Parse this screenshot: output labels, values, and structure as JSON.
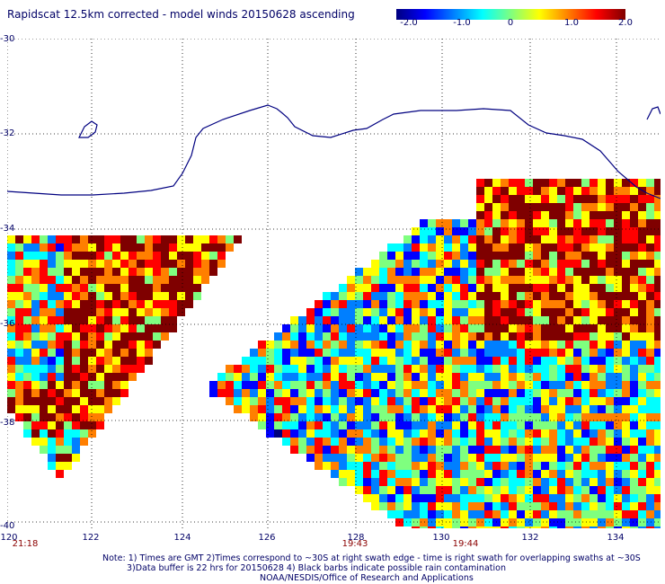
{
  "title": "Rapidscat 12.5km corrected - model winds 20150628 ascending",
  "colorbar": {
    "ticks": [
      "-2.0",
      "-1.0",
      "0",
      "1.0",
      "2.0"
    ],
    "tick_values": [
      -2.0,
      -1.0,
      0,
      1.0,
      2.0
    ],
    "colors": [
      "#00007f",
      "#0000ff",
      "#007fff",
      "#00ffff",
      "#7fff7f",
      "#ffff00",
      "#ff7f00",
      "#ff0000",
      "#7f0000"
    ]
  },
  "map": {
    "lat_range": [
      -40,
      -30
    ],
    "lon_range": [
      120,
      135
    ],
    "lat_labels": [
      "-30",
      "-32",
      "-34",
      "-36",
      "-38",
      "-40"
    ],
    "lon_labels": [
      "120",
      "122",
      "124",
      "126",
      "128",
      "130",
      "132",
      "134"
    ],
    "coast_color": "#000080",
    "grid_color": "#000000"
  },
  "times": [
    {
      "label": "21:18",
      "lon": 120
    },
    {
      "label": "19:43",
      "lon": 128
    },
    {
      "label": "19:44",
      "lon": 130.6
    }
  ],
  "notes": {
    "line1": "Note: 1) Times are GMT 2)Times correspond to ~30S at right swath edge - time is right swath for overlapping swaths at ~30S",
    "line2": "3)Data buffer is 22 hrs for 20150628 4) Black barbs indicate possible rain contamination",
    "line3": "NOAA/NESDIS/Office of Research and Applications"
  }
}
